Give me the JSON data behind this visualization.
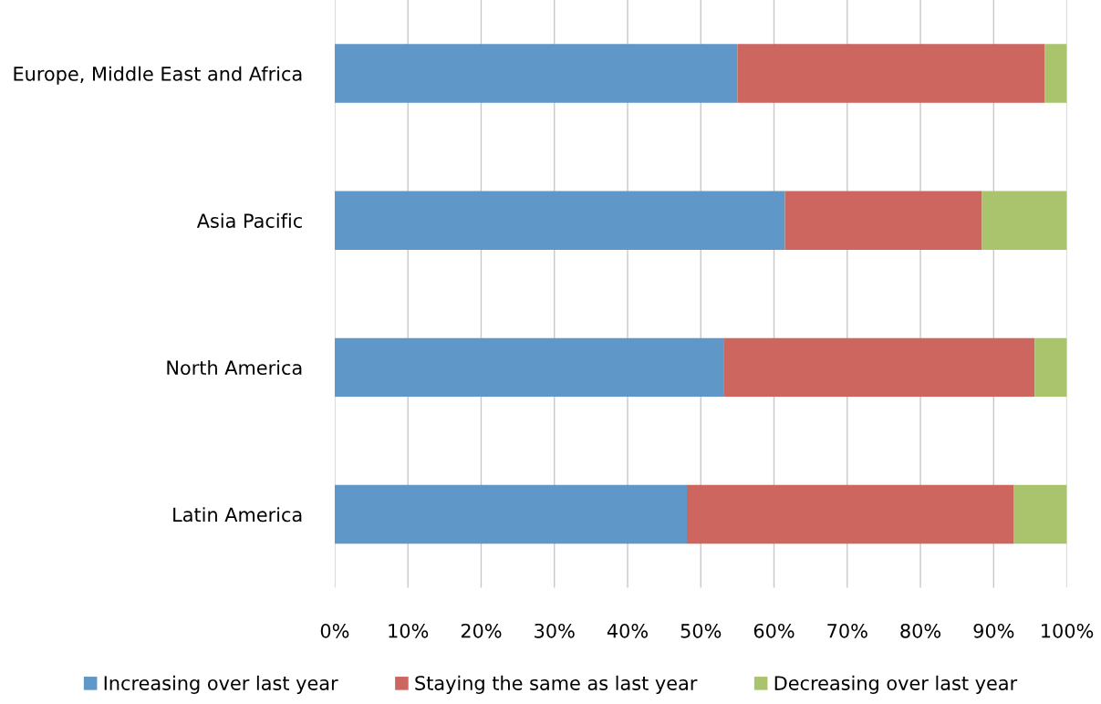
{
  "chart_data": {
    "type": "bar",
    "orientation": "horizontal",
    "stacked": true,
    "categories": [
      "Europe, Middle East and Africa",
      "Asia Pacific",
      "North America",
      "Latin America"
    ],
    "series": [
      {
        "name": "Increasing over last year",
        "color": "#6097c9",
        "values": [
          55,
          61.5,
          53.2,
          48.1
        ]
      },
      {
        "name": "Staying the same as last year",
        "color": "#cd665e",
        "values": [
          42,
          26.9,
          42.4,
          44.6
        ]
      },
      {
        "name": "Decreasing over last year",
        "color": "#a9c46c",
        "values": [
          3,
          11.6,
          4.4,
          7.3
        ]
      }
    ],
    "xlim": [
      0,
      100
    ],
    "xticks": [
      {
        "value": 0,
        "label": "0%"
      },
      {
        "value": 10,
        "label": "10%"
      },
      {
        "value": 20,
        "label": "20%"
      },
      {
        "value": 30,
        "label": "30%"
      },
      {
        "value": 40,
        "label": "40%"
      },
      {
        "value": 50,
        "label": "50%"
      },
      {
        "value": 60,
        "label": "60%"
      },
      {
        "value": 70,
        "label": "70%"
      },
      {
        "value": 80,
        "label": "80%"
      },
      {
        "value": 90,
        "label": "90%"
      },
      {
        "value": 100,
        "label": "100%"
      }
    ],
    "grid": "x",
    "legend": "bottom"
  }
}
